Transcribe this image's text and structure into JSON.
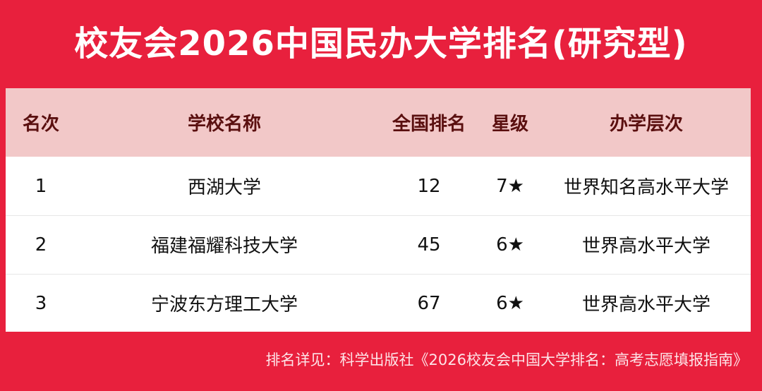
{
  "title": "校友会2026中国民办大学排名(研究型)",
  "colors": {
    "background": "#e8203d",
    "header_row": "#f2c8c8",
    "header_text": "#5a0f0f"
  },
  "table": {
    "headers": [
      "名次",
      "学校名称",
      "全国排名",
      "星级",
      "办学层次"
    ],
    "rows": [
      [
        "1",
        "西湖大学",
        "12",
        "7★",
        "世界知名高水平大学"
      ],
      [
        "2",
        "福建福耀科技大学",
        "45",
        "6★",
        "世界高水平大学"
      ],
      [
        "3",
        "宁波东方理工大学",
        "67",
        "6★",
        "世界高水平大学"
      ]
    ]
  },
  "footer": "排名详见：科学出版社《2026校友会中国大学排名：高考志愿填报指南》"
}
